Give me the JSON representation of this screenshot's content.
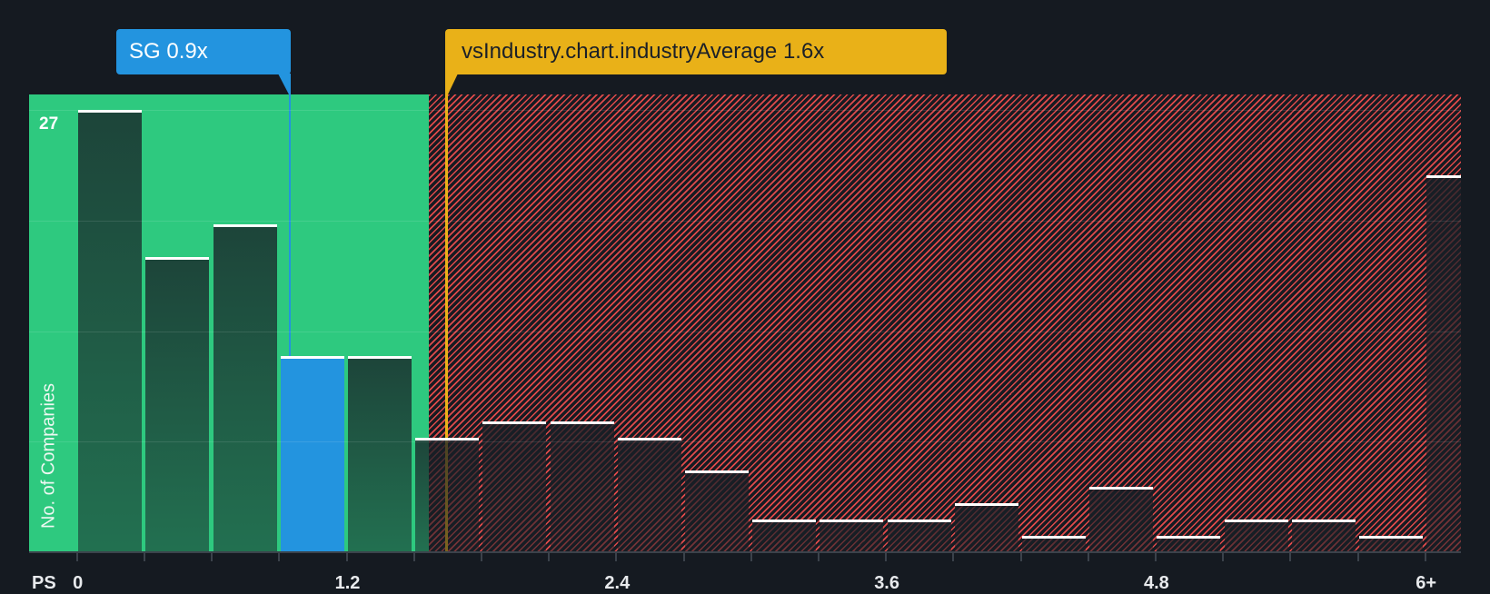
{
  "chart_data": {
    "type": "bar",
    "title": "",
    "xlabel": "PS",
    "ylabel": "No. of Companies",
    "bin_width": 0.3,
    "categories": [
      "0-0.3",
      "0.3-0.6",
      "0.6-0.9",
      "0.9-1.2",
      "1.2-1.5",
      "1.5-1.8",
      "1.8-2.1",
      "2.1-2.4",
      "2.4-2.7",
      "2.7-3.0",
      "3.0-3.3",
      "3.3-3.6",
      "3.6-3.9",
      "3.9-4.2",
      "4.2-4.5",
      "4.5-4.8",
      "4.8-5.1",
      "5.1-5.4",
      "5.4-5.7",
      "5.7-6.0",
      "6+"
    ],
    "values": [
      27,
      18,
      20,
      12,
      12,
      7,
      8,
      8,
      7,
      5,
      2,
      2,
      2,
      3,
      1,
      4,
      1,
      2,
      2,
      1,
      23
    ],
    "highlight_index": 3,
    "ylim": [
      0,
      27
    ],
    "y_ticks": [
      {
        "value": 27,
        "label": "27"
      }
    ],
    "x_ticks": [
      {
        "value": 0,
        "label": "0"
      },
      {
        "value": 1.2,
        "label": "1.2"
      },
      {
        "value": 2.4,
        "label": "2.4"
      },
      {
        "value": 3.6,
        "label": "3.6"
      },
      {
        "value": 4.8,
        "label": "4.8"
      },
      {
        "value": 6.0,
        "label": "6+"
      }
    ],
    "grid": true,
    "annotations": [
      {
        "label": "SG 0.9x",
        "value": 0.9,
        "color": "#2394df"
      },
      {
        "label": "vsIndustry.chart.industryAverage 1.6x",
        "value": 1.6,
        "color": "#e9b118"
      }
    ],
    "regions": [
      {
        "from": 0,
        "to": 1.56,
        "fill": "#2ec97f"
      },
      {
        "from": 1.56,
        "to": 6.3,
        "fill": "#161b22",
        "pattern": "hatch",
        "pattern_color": "#e04a4a"
      }
    ]
  }
}
